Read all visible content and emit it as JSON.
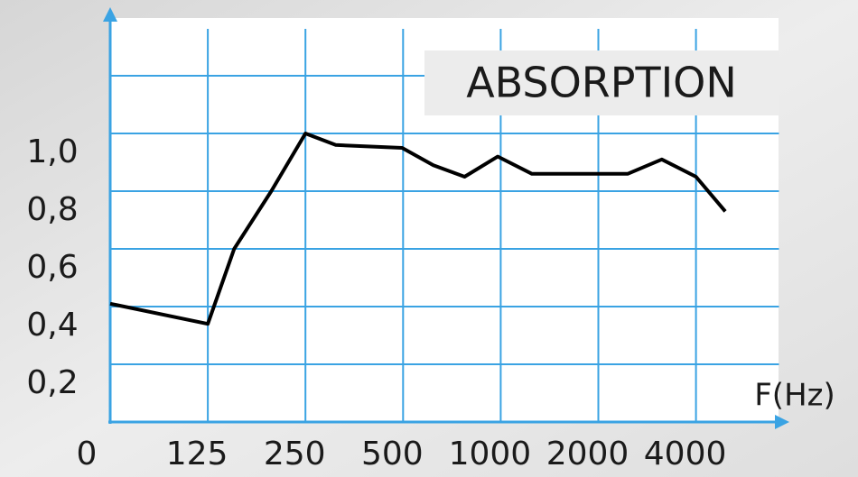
{
  "chart_data": {
    "type": "line",
    "title": "ABSORPTION",
    "x_label": "F(Hz)",
    "xlim": [
      0,
      6.85
    ],
    "xticks": [
      {
        "value": 0,
        "label": "0"
      },
      {
        "value": 1,
        "label": "125"
      },
      {
        "value": 2,
        "label": "250"
      },
      {
        "value": 3,
        "label": "500"
      },
      {
        "value": 4,
        "label": "1000"
      },
      {
        "value": 5,
        "label": "2000"
      },
      {
        "value": 6,
        "label": "4000"
      }
    ],
    "ylim": [
      0,
      1.4
    ],
    "yticks": [
      {
        "value": 0.2,
        "label": "0,2"
      },
      {
        "value": 0.4,
        "label": "0,4"
      },
      {
        "value": 0.6,
        "label": "0,6"
      },
      {
        "value": 0.8,
        "label": "0,8"
      },
      {
        "value": 1.0,
        "label": "1,0"
      }
    ],
    "grid": true,
    "grid_color": "#3aa3e3",
    "series": [
      {
        "color": "#000000",
        "x": [
          0,
          1.0,
          1.27,
          1.65,
          2.0,
          2.31,
          2.99,
          3.31,
          3.63,
          3.97,
          4.32,
          5.3,
          5.65,
          6.0,
          6.3
        ],
        "values": [
          0.41,
          0.34,
          0.6,
          0.8,
          1.0,
          0.96,
          0.95,
          0.89,
          0.85,
          0.92,
          0.86,
          0.86,
          0.91,
          0.85,
          0.73
        ]
      }
    ]
  }
}
